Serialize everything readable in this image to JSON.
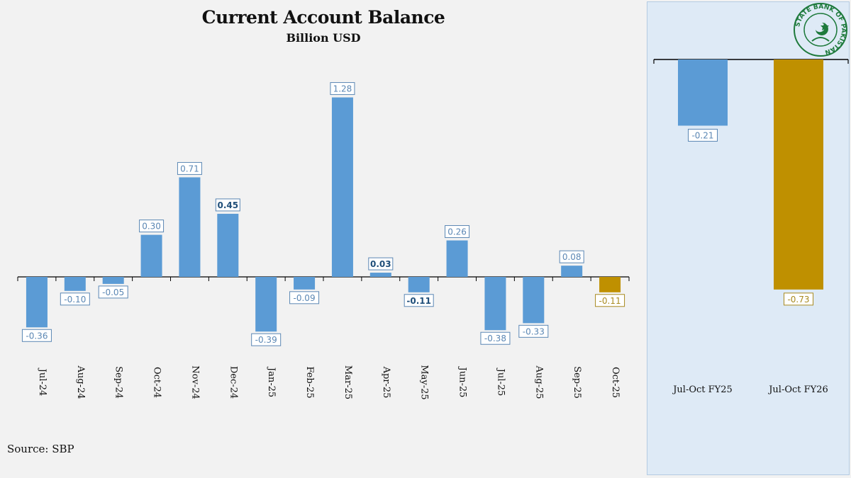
{
  "title": "Current Account Balance",
  "subtitle": "Billion USD",
  "source": "Source: SBP",
  "logo": {
    "text": "STATE BANK OF PAKISTAN"
  },
  "colors": {
    "blue": "#5b9bd5",
    "gold": "#bf9000",
    "blue_text": "#5b87b4",
    "gold_text": "#a88a20"
  },
  "chart_data": [
    {
      "type": "bar",
      "title": "Current Account Balance",
      "subtitle": "Billion USD",
      "categories": [
        "Jul-24",
        "Aug-24",
        "Sep-24",
        "Oct-24",
        "Nov-24",
        "Dec-24",
        "Jan-25",
        "Feb-25",
        "Mar-25",
        "Apr-25",
        "May-25",
        "Jun-25",
        "Jul-25",
        "Aug-25",
        "Sep-25",
        "Oct-25"
      ],
      "values": [
        -0.36,
        -0.1,
        -0.05,
        0.3,
        0.71,
        0.45,
        -0.39,
        -0.09,
        1.28,
        0.03,
        -0.11,
        0.26,
        -0.38,
        -0.33,
        0.08,
        -0.11
      ],
      "labels": [
        "-0.36",
        "-0.10",
        "-0.05",
        "0.30",
        "0.71",
        "0.45",
        "-0.39",
        "-0.09",
        "1.28",
        "0.03",
        "-0.11",
        "0.26",
        "-0.38",
        "-0.33",
        "0.08",
        "-0.11"
      ],
      "highlight": [
        false,
        false,
        false,
        false,
        false,
        false,
        false,
        false,
        false,
        false,
        false,
        false,
        false,
        false,
        false,
        true
      ],
      "bold_labels": [
        false,
        false,
        false,
        false,
        false,
        true,
        false,
        false,
        false,
        true,
        true,
        false,
        false,
        false,
        false,
        false
      ],
      "xlabel": "",
      "ylabel": "",
      "ylim": [
        -0.5,
        1.4
      ]
    },
    {
      "type": "bar",
      "categories": [
        "Jul-Oct FY25",
        "Jul-Oct FY26"
      ],
      "values": [
        -0.21,
        -0.73
      ],
      "labels": [
        "-0.21",
        "-0.73"
      ],
      "highlight": [
        false,
        true
      ],
      "ylim": [
        -0.9,
        0.05
      ]
    }
  ]
}
